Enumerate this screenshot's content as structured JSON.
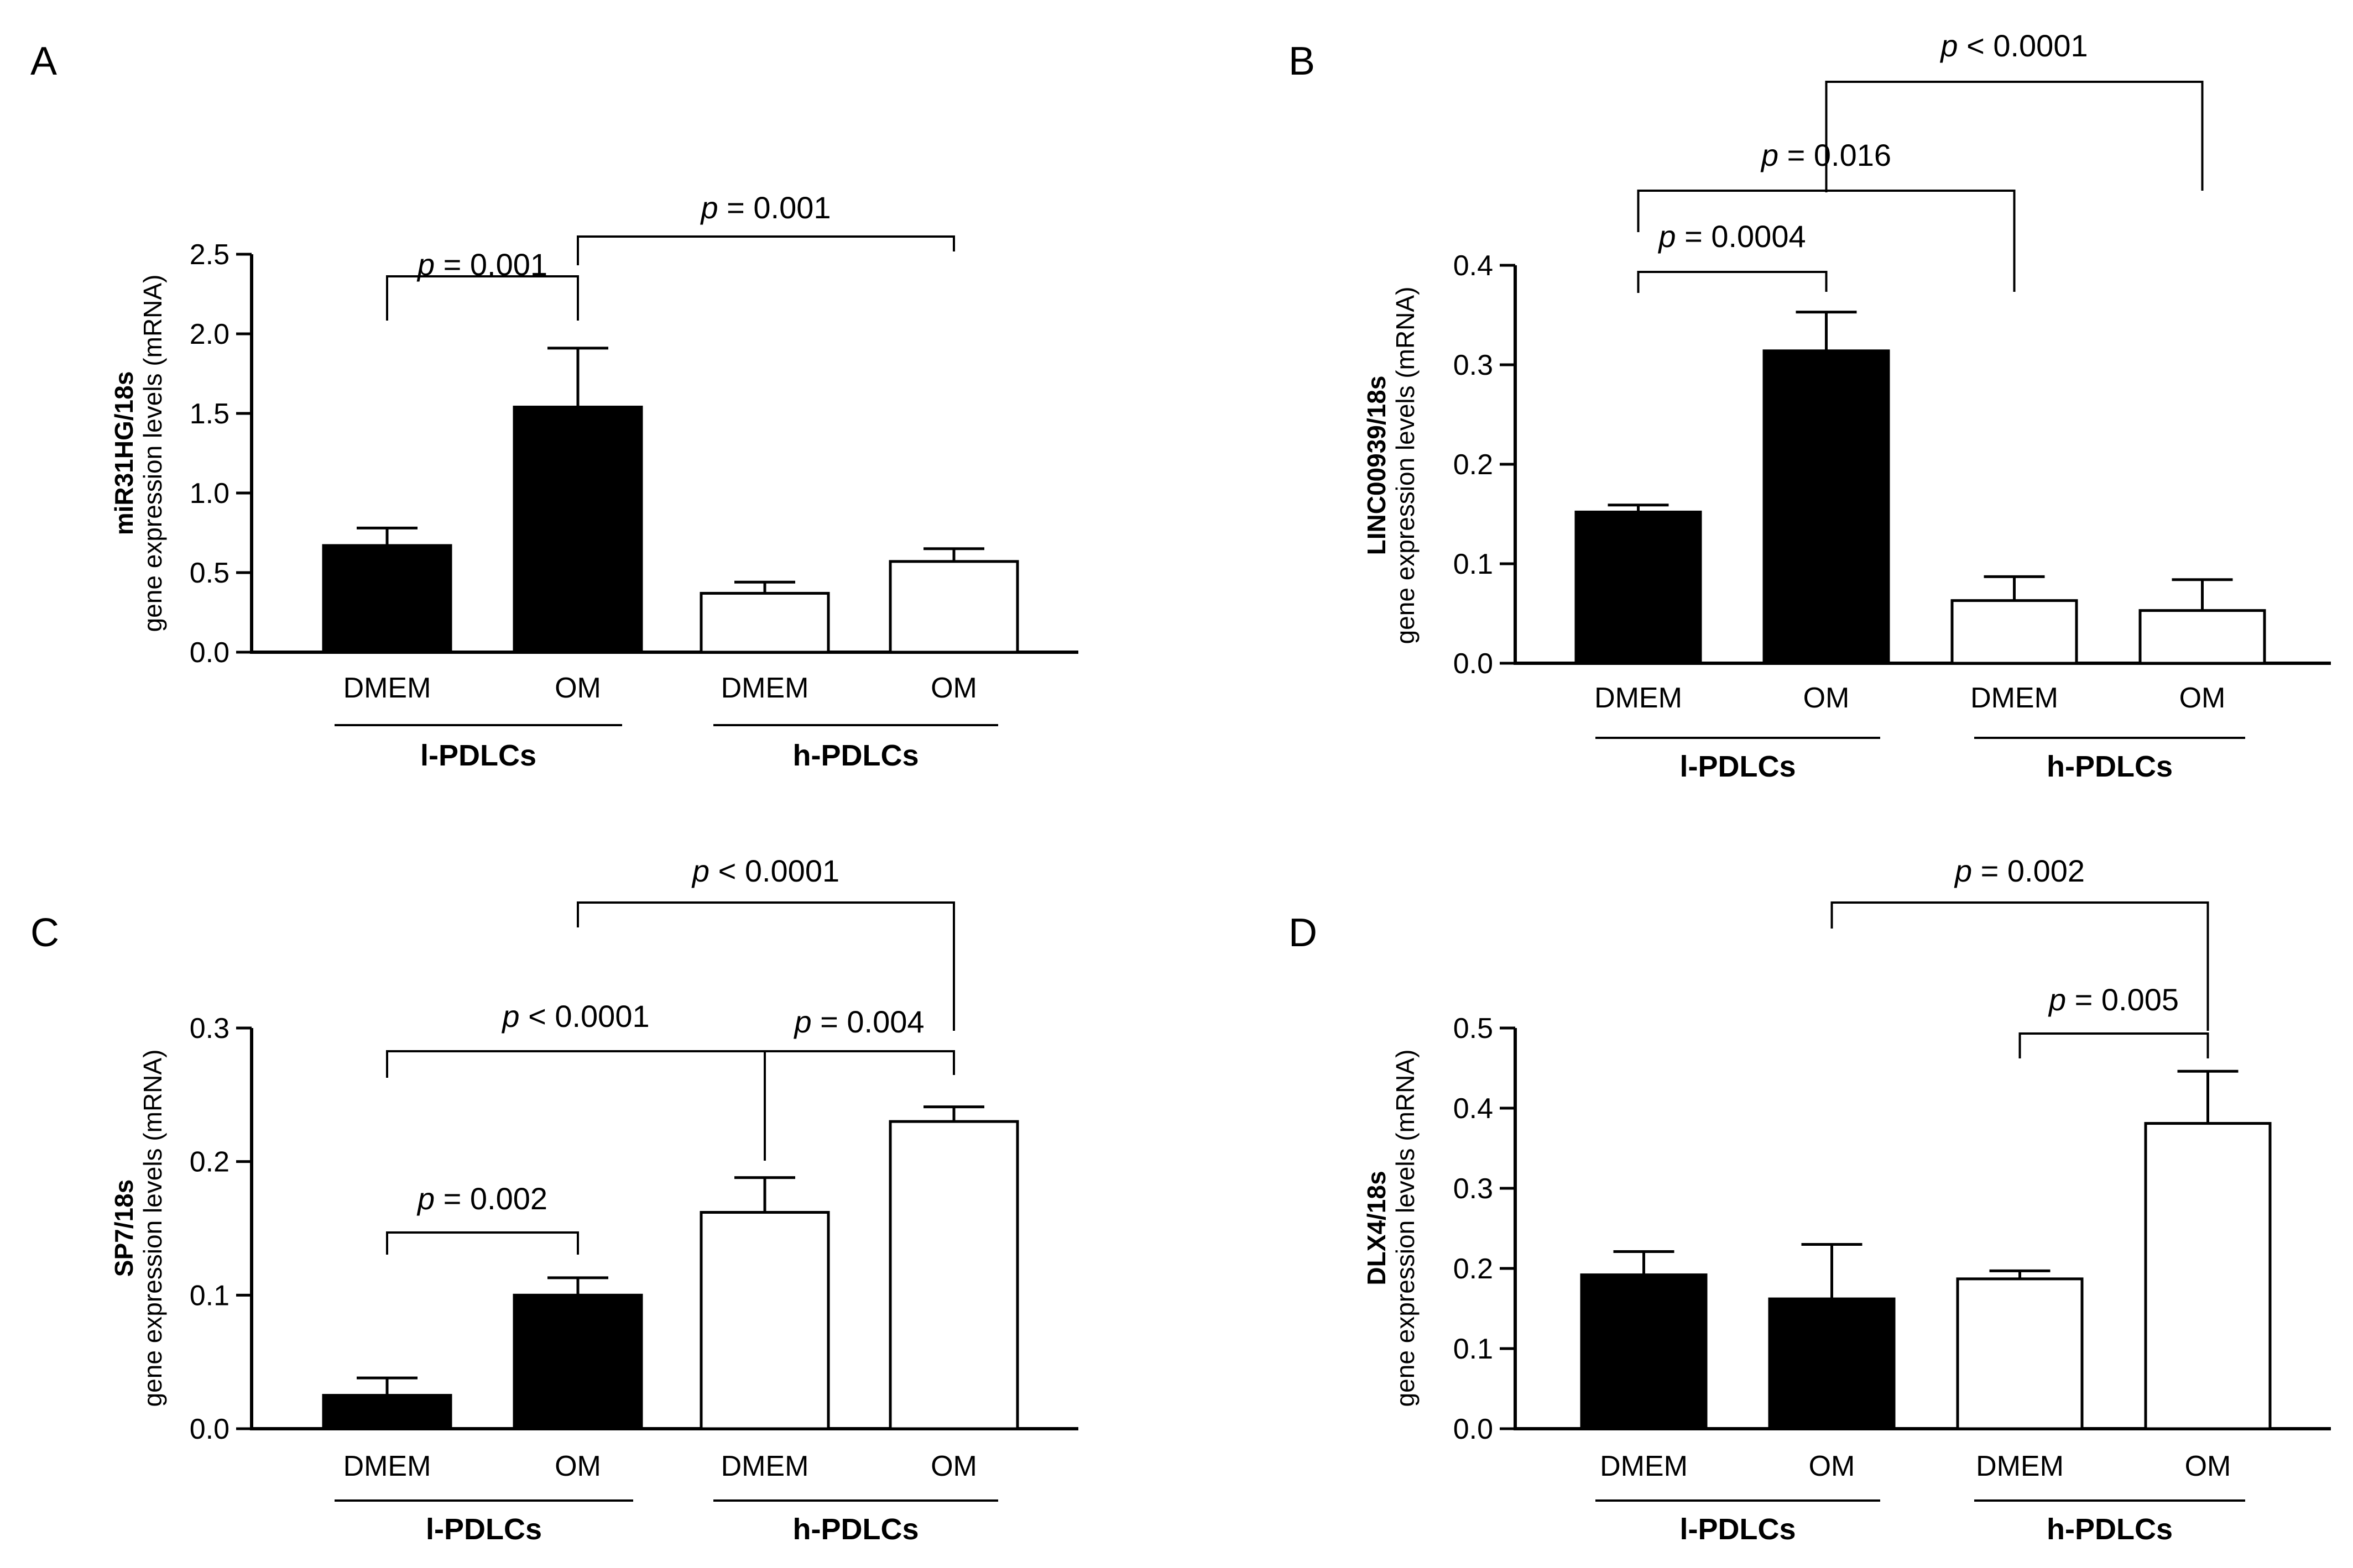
{
  "chart_data": [
    {
      "panel": "A",
      "type": "bar",
      "ylabel_bold": "miR31HG/18s",
      "ylabel": "gene expression levels (mRNA)",
      "ylim": [
        0,
        2.5
      ],
      "yticks": [
        "0.0",
        "0.5",
        "1.0",
        "1.5",
        "2.0",
        "2.5"
      ],
      "categories": [
        "DMEM",
        "OM",
        "DMEM",
        "OM"
      ],
      "values": [
        0.67,
        1.54,
        0.37,
        0.57
      ],
      "errors": [
        0.11,
        0.37,
        0.07,
        0.08
      ],
      "fill": [
        "black",
        "black",
        "white",
        "white"
      ],
      "groups": [
        "l-PDLCs",
        "h-PDLCs"
      ],
      "annotations": [
        {
          "from": 0,
          "to": 1,
          "text": "p = 0.001"
        },
        {
          "from": 1,
          "to": 3,
          "text": "p = 0.001"
        }
      ]
    },
    {
      "panel": "B",
      "type": "bar",
      "ylabel_bold": "LINC00939/18s",
      "ylabel": "gene expression levels (mRNA)",
      "ylim": [
        0,
        0.4
      ],
      "yticks": [
        "0.0",
        "0.1",
        "0.2",
        "0.3",
        "0.4"
      ],
      "categories": [
        "DMEM",
        "OM",
        "DMEM",
        "OM"
      ],
      "values": [
        0.152,
        0.314,
        0.063,
        0.053
      ],
      "errors": [
        0.007,
        0.039,
        0.024,
        0.031
      ],
      "fill": [
        "black",
        "black",
        "white",
        "white"
      ],
      "groups": [
        "l-PDLCs",
        "h-PDLCs"
      ],
      "annotations": [
        {
          "from": 0,
          "to": 1,
          "text": "p = 0.0004"
        },
        {
          "from": 0,
          "to": 2,
          "text": "p = 0.016"
        },
        {
          "from": 1,
          "to": 3,
          "text": "p < 0.0001"
        }
      ]
    },
    {
      "panel": "C",
      "type": "bar",
      "ylabel_bold": "SP7/18s",
      "ylabel": "gene expression levels (mRNA)",
      "ylim": [
        0,
        0.3
      ],
      "yticks": [
        "0.0",
        "0.1",
        "0.2",
        "0.3"
      ],
      "categories": [
        "DMEM",
        "OM",
        "DMEM",
        "OM"
      ],
      "values": [
        0.025,
        0.1,
        0.162,
        0.23
      ],
      "errors": [
        0.013,
        0.013,
        0.026,
        0.011
      ],
      "fill": [
        "black",
        "black",
        "white",
        "white"
      ],
      "groups": [
        "l-PDLCs",
        "h-PDLCs"
      ],
      "annotations": [
        {
          "from": 0,
          "to": 1,
          "text": "p = 0.002"
        },
        {
          "from": 0,
          "to": 2,
          "text": "p < 0.0001"
        },
        {
          "from": 2,
          "to": 3,
          "text": "p = 0.004"
        },
        {
          "from": 1,
          "to": 3,
          "text": "p < 0.0001"
        }
      ]
    },
    {
      "panel": "D",
      "type": "bar",
      "ylabel_bold": "DLX4/18s",
      "ylabel": "gene expression levels (mRNA)",
      "ylim": [
        0,
        0.5
      ],
      "yticks": [
        "0.0",
        "0.1",
        "0.2",
        "0.3",
        "0.4",
        "0.5"
      ],
      "categories": [
        "DMEM",
        "OM",
        "DMEM",
        "OM"
      ],
      "values": [
        0.192,
        0.162,
        0.187,
        0.381
      ],
      "errors": [
        0.029,
        0.068,
        0.01,
        0.065
      ],
      "fill": [
        "black",
        "black",
        "white",
        "white"
      ],
      "groups": [
        "l-PDLCs",
        "h-PDLCs"
      ],
      "annotations": [
        {
          "from": 2,
          "to": 3,
          "text": "p = 0.005"
        },
        {
          "from": 1,
          "to": 3,
          "text": "p = 0.002"
        }
      ]
    }
  ]
}
